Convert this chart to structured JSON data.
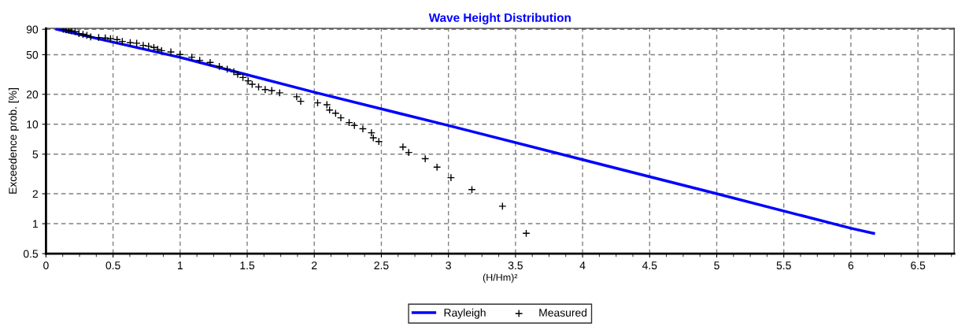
{
  "chart_data": {
    "type": "scatter",
    "title": "Wave Height Distribution",
    "xlabel": "(H/Hm)²",
    "ylabel": "Exceedence prob. [%]",
    "xlim": [
      0,
      6.77
    ],
    "xticks": [
      0,
      0.5,
      1,
      1.5,
      2,
      2.5,
      3,
      3.5,
      4,
      4.5,
      5,
      5.5,
      6,
      6.5
    ],
    "ylim": [
      0.5,
      92
    ],
    "yticks": [
      0.5,
      1,
      2,
      5,
      10,
      20,
      50,
      90
    ],
    "grid": true,
    "log": "y",
    "legend": "bottom",
    "series": [
      {
        "name": "Rayleigh",
        "type": "line",
        "marker": "none",
        "color": "#0000ff",
        "x": [
          0.08,
          1,
          2,
          3,
          4,
          5,
          6,
          6.17
        ],
        "values": [
          90,
          47,
          21,
          9.7,
          4.4,
          2.0,
          0.9,
          0.8
        ]
      },
      {
        "name": "Measured",
        "marker": "cross",
        "color": "#000000",
        "x": [
          0.129,
          0.15,
          0.17,
          0.188,
          0.217,
          0.246,
          0.276,
          0.305,
          0.334,
          0.393,
          0.442,
          0.481,
          0.53,
          0.569,
          0.628,
          0.676,
          0.725,
          0.765,
          0.804,
          0.833,
          0.862,
          0.931,
          0.999,
          1.087,
          1.146,
          1.224,
          1.292,
          1.351,
          1.4,
          1.429,
          1.468,
          1.507,
          1.537,
          1.585,
          1.634,
          1.683,
          1.742,
          1.869,
          1.899,
          2.025,
          2.094,
          2.114,
          2.159,
          2.198,
          2.26,
          2.299,
          2.362,
          2.426,
          2.44,
          2.481,
          2.661,
          2.704,
          2.827,
          2.915,
          3.019,
          3.175,
          3.403,
          3.58
        ],
        "values": [
          90,
          89,
          88,
          86.8,
          85.2,
          81.6,
          80.2,
          78.3,
          75.4,
          74.5,
          73.6,
          72.3,
          71,
          68,
          66,
          65.2,
          62.1,
          60.9,
          59.1,
          56.6,
          54.9,
          53.3,
          50.2,
          47.2,
          43.9,
          41.8,
          38.1,
          35.8,
          33.7,
          31.7,
          29.5,
          27.3,
          25.2,
          23.7,
          22.3,
          21.8,
          20.7,
          18.9,
          17,
          16.4,
          15.7,
          13.9,
          12.9,
          11.6,
          10.4,
          9.7,
          9,
          8.2,
          7.3,
          6.7,
          5.9,
          5.2,
          4.5,
          3.7,
          2.9,
          2.2,
          1.5,
          0.8
        ]
      }
    ]
  }
}
